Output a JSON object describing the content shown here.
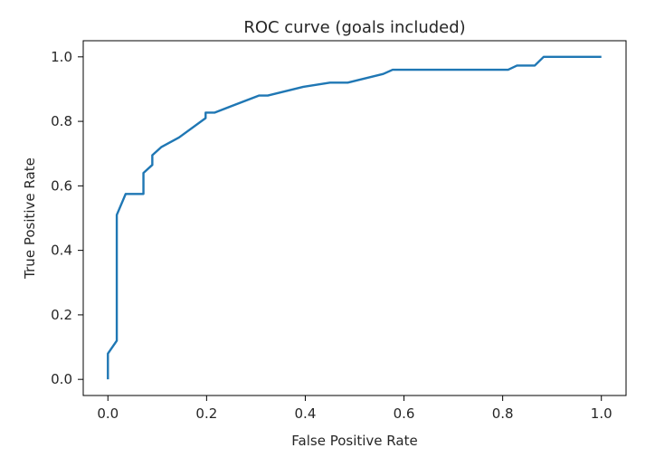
{
  "chart_data": {
    "type": "line",
    "title": "ROC curve (goals included)",
    "xlabel": "False Positive Rate",
    "ylabel": "True Positive Rate",
    "xlim": [
      -0.05,
      1.05
    ],
    "ylim": [
      -0.05,
      1.05
    ],
    "xticks": [
      "0.0",
      "0.2",
      "0.4",
      "0.6",
      "0.8",
      "1.0"
    ],
    "yticks": [
      "0.0",
      "0.2",
      "0.4",
      "0.6",
      "0.8",
      "1.0"
    ],
    "grid": false,
    "legend": "none",
    "series": [
      {
        "color": "#1f77b4",
        "x": [
          0.0,
          0.0,
          0.018,
          0.018,
          0.036,
          0.072,
          0.072,
          0.09,
          0.09,
          0.108,
          0.144,
          0.198,
          0.198,
          0.216,
          0.306,
          0.324,
          0.396,
          0.45,
          0.486,
          0.558,
          0.577,
          0.577,
          0.811,
          0.829,
          0.865,
          0.883,
          0.883,
          1.0
        ],
        "y": [
          0.0,
          0.08,
          0.12,
          0.51,
          0.575,
          0.575,
          0.64,
          0.665,
          0.695,
          0.72,
          0.75,
          0.81,
          0.827,
          0.827,
          0.88,
          0.88,
          0.907,
          0.92,
          0.92,
          0.947,
          0.96,
          0.96,
          0.96,
          0.973,
          0.973,
          1.0,
          1.0,
          1.0
        ]
      }
    ]
  }
}
